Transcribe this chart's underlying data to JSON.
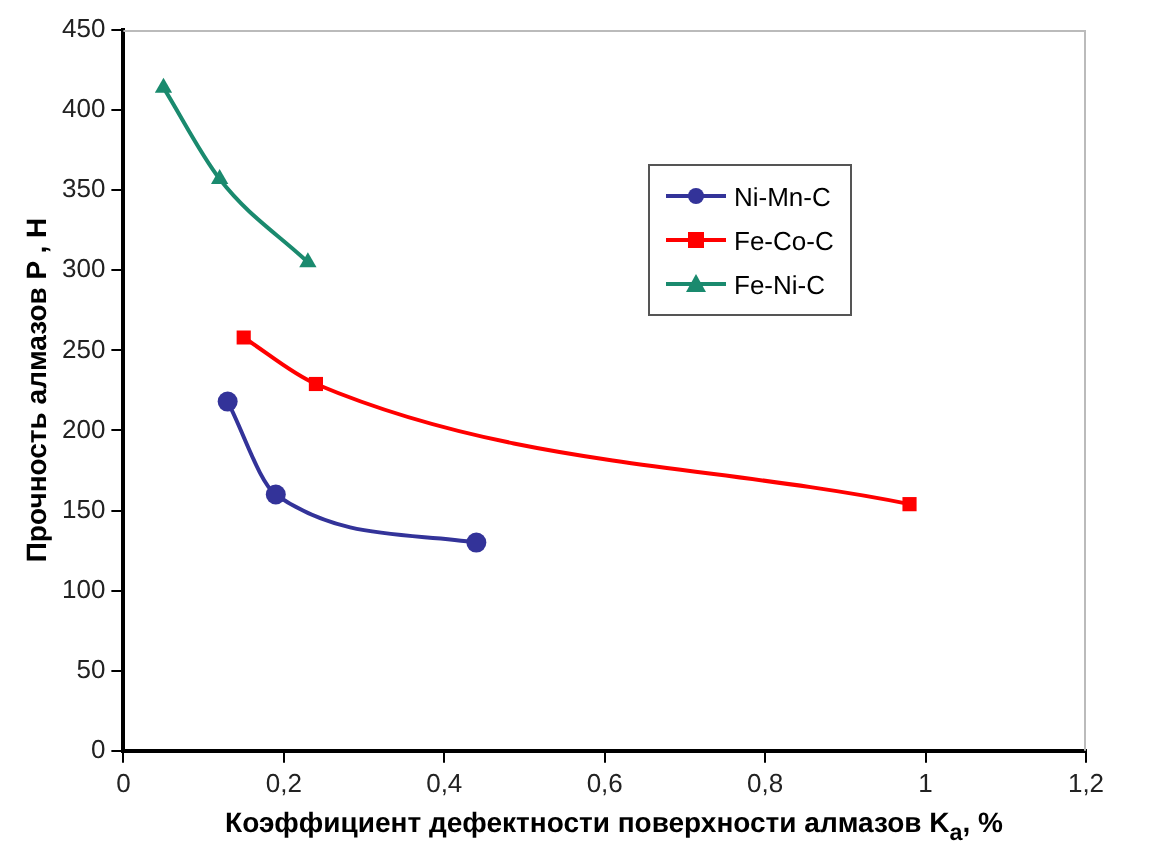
{
  "chart_data": {
    "type": "line",
    "xlabel": "Коэффициент дефектности поверхности алмазов K$_{а}$, %",
    "ylabel": "Прочность алмазов P , Н",
    "xlim": [
      0,
      1.2
    ],
    "xticks": [
      0,
      {
        "value": 0.2,
        "label": "0,2"
      },
      {
        "value": 0.4,
        "label": "0,4"
      },
      {
        "value": 0.6,
        "label": "0,6"
      },
      {
        "value": 0.8,
        "label": "0,8"
      },
      1,
      {
        "value": 1.2,
        "label": "1,2"
      }
    ],
    "ylim": [
      0,
      450
    ],
    "yticks": [
      0,
      50,
      100,
      150,
      200,
      250,
      300,
      350,
      400,
      450
    ],
    "grid": false,
    "legend": "top right",
    "series": [
      {
        "name": "Ni-Mn-C",
        "color": "#333399",
        "marker": "circle",
        "x": [
          0.13,
          0.19,
          0.44
        ],
        "values": [
          218,
          160,
          130
        ]
      },
      {
        "name": "Fe-Co-C",
        "color": "#ff0000",
        "marker": "square",
        "x": [
          0.15,
          0.24,
          0.98
        ],
        "values": [
          258,
          229,
          154
        ]
      },
      {
        "name": "Fe-Ni-C",
        "color": "#1a8a6e",
        "marker": "triangle",
        "x": [
          0.05,
          0.12,
          0.23
        ],
        "values": [
          414,
          357,
          305
        ]
      }
    ]
  }
}
